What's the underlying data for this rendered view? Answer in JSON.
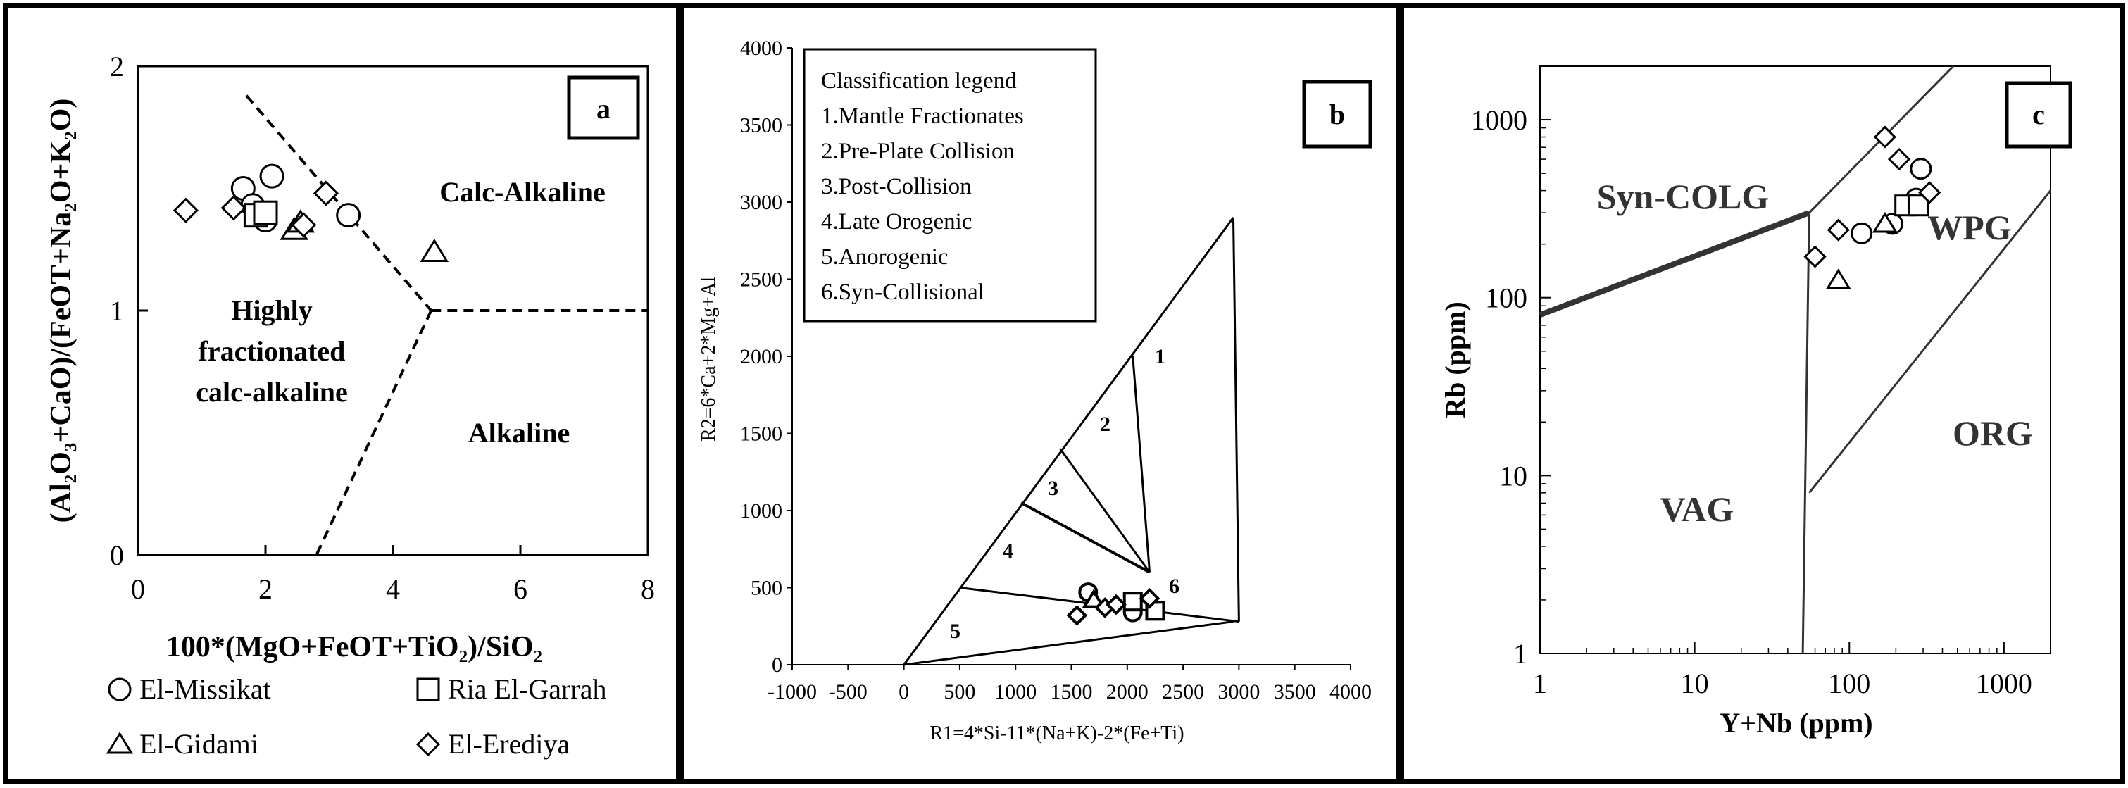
{
  "chart_data": [
    {
      "panel_label": "a",
      "type": "scatter",
      "xlabel": "100*(MgO+FeOT+TiO₂)/SiO₂",
      "ylabel": "(Al₂O₃+CaO)/(FeOT+Na₂O+K₂O)",
      "xlim": [
        0,
        8
      ],
      "ylim": [
        0,
        2
      ],
      "xticks": [
        "0",
        "2",
        "4",
        "6",
        "8"
      ],
      "yticks": [
        "0",
        "1",
        "2"
      ],
      "field_labels": {
        "calc_alkaline": "Calc-Alkaline",
        "highly_1": "Highly",
        "highly_2": "fractionated",
        "highly_3": "calc-alkaline",
        "alkaline": "Alkaline"
      },
      "boundaries": [
        [
          [
            1.7,
            1.88
          ],
          [
            4.6,
            1.0
          ]
        ],
        [
          [
            4.6,
            1.0
          ],
          [
            8.0,
            1.0
          ]
        ],
        [
          [
            4.6,
            1.0
          ],
          [
            2.8,
            0.0
          ]
        ]
      ],
      "series": [
        {
          "name": "El-Missikat",
          "marker": "circle",
          "points": [
            [
              1.65,
              1.5
            ],
            [
              1.8,
              1.43
            ],
            [
              2.1,
              1.55
            ],
            [
              2.0,
              1.37
            ],
            [
              3.3,
              1.39
            ]
          ]
        },
        {
          "name": "Ria El-Garrah",
          "marker": "square",
          "points": [
            [
              1.85,
              1.39
            ],
            [
              2.0,
              1.4
            ]
          ]
        },
        {
          "name": "El-Gidami",
          "marker": "triangle",
          "points": [
            [
              2.45,
              1.33
            ],
            [
              2.55,
              1.36
            ],
            [
              4.65,
              1.24
            ]
          ]
        },
        {
          "name": "El-Erediya",
          "marker": "diamond",
          "points": [
            [
              0.75,
              1.41
            ],
            [
              1.5,
              1.42
            ],
            [
              2.6,
              1.35
            ],
            [
              2.95,
              1.48
            ]
          ]
        }
      ],
      "legend": [
        "El-Missikat",
        "Ria El-Garrah",
        "El-Gidami",
        "El-Erediya"
      ]
    },
    {
      "panel_label": "b",
      "type": "scatter",
      "xlabel": "R1=4*Si-11*(Na+K)-2*(Fe+Ti)",
      "ylabel": "R2=6*Ca+2*Mg+Al",
      "xlim": [
        -1000,
        4000
      ],
      "ylim": [
        0,
        4000
      ],
      "xticks": [
        "-1000",
        "-500",
        "0",
        "500",
        "1000",
        "1500",
        "2000",
        "2500",
        "3000",
        "3500",
        "4000"
      ],
      "yticks": [
        "0",
        "500",
        "1000",
        "1500",
        "2000",
        "2500",
        "3000",
        "3500",
        "4000"
      ],
      "legend_title": "Classification legend",
      "legend_items": [
        "1.Mantle Fractionates",
        "2.Pre-Plate Collision",
        "3.Post-Collision",
        "4.Late Orogenic",
        "5.Anorogenic",
        "6.Syn-Collisional"
      ],
      "field_numbers": [
        "1",
        "2",
        "3",
        "4",
        "5",
        "6"
      ],
      "series": [
        {
          "name": "El-Missikat",
          "marker": "circle",
          "points": [
            [
              1650,
              470
            ],
            [
              2050,
              340
            ]
          ]
        },
        {
          "name": "Ria El-Garrah",
          "marker": "square",
          "points": [
            [
              2050,
              410
            ],
            [
              2250,
              350
            ]
          ]
        },
        {
          "name": "El-Gidami",
          "marker": "triangle",
          "points": [
            [
              1700,
              420
            ]
          ]
        },
        {
          "name": "El-Erediya",
          "marker": "diamond",
          "points": [
            [
              1550,
              320
            ],
            [
              1800,
              370
            ],
            [
              1900,
              390
            ],
            [
              2200,
              430
            ]
          ]
        }
      ]
    },
    {
      "panel_label": "c",
      "type": "scatter",
      "xlabel": "Y+Nb (ppm)",
      "ylabel": "Rb (ppm)",
      "xscale": "log",
      "yscale": "log",
      "xlim": [
        1,
        2000
      ],
      "ylim": [
        1,
        2000
      ],
      "xticks": [
        "1",
        "10",
        "100",
        "1000"
      ],
      "yticks": [
        "1",
        "10",
        "100",
        "1000"
      ],
      "field_labels": {
        "syn_colg": "Syn-COLG",
        "wpg": "WPG",
        "vag": "VAG",
        "org": "ORG"
      },
      "series": [
        {
          "name": "El-Missikat",
          "marker": "circle",
          "points": [
            [
              120,
              230
            ],
            [
              190,
              260
            ],
            [
              290,
              530
            ],
            [
              270,
              360
            ]
          ]
        },
        {
          "name": "Ria El-Garrah",
          "marker": "square",
          "points": [
            [
              230,
              330
            ],
            [
              280,
              330
            ]
          ]
        },
        {
          "name": "El-Gidami",
          "marker": "triangle",
          "points": [
            [
              85,
              125
            ],
            [
              170,
              260
            ]
          ]
        },
        {
          "name": "El-Erediya",
          "marker": "diamond",
          "points": [
            [
              60,
              170
            ],
            [
              85,
              240
            ],
            [
              170,
              800
            ],
            [
              210,
              600
            ],
            [
              330,
              390
            ]
          ]
        }
      ]
    }
  ]
}
